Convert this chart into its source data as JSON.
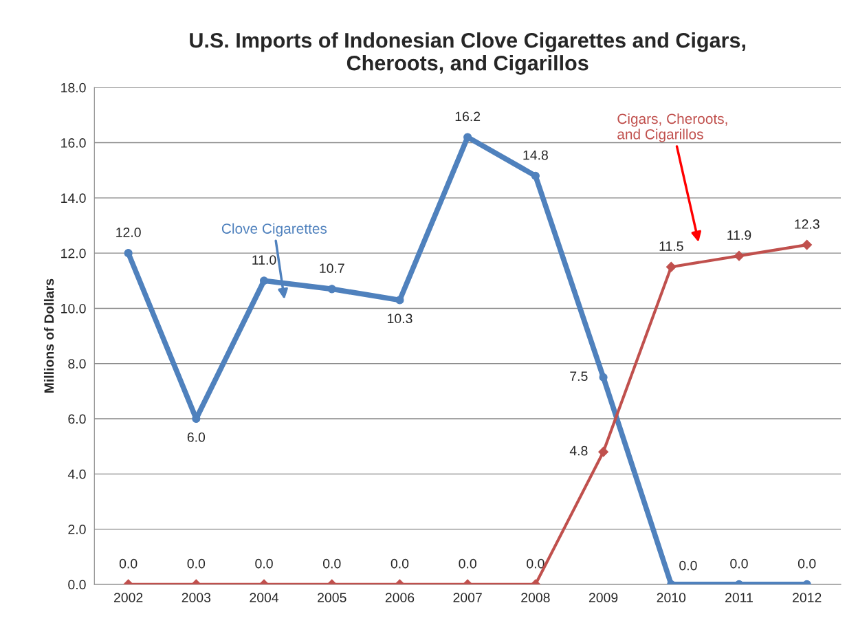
{
  "chart_data": {
    "type": "line",
    "title": "U.S. Imports of Indonesian Clove Cigarettes and Cigars,\nCheroots, and Cigarillos",
    "ylabel": "Millions of Dollars",
    "categories": [
      "2002",
      "2003",
      "2004",
      "2005",
      "2006",
      "2007",
      "2008",
      "2009",
      "2010",
      "2011",
      "2012"
    ],
    "series": [
      {
        "name": "Clove Cigarettes",
        "color": "#4f81bd",
        "marker": "circle",
        "values": [
          12.0,
          6.0,
          11.0,
          10.7,
          10.3,
          16.2,
          14.8,
          7.5,
          0.0,
          0.0,
          0.0
        ],
        "value_labels": [
          "12.0",
          "6.0",
          "11.0",
          "10.7",
          "10.3",
          "16.2",
          "14.8",
          "7.5",
          "0.0",
          "0.0",
          "0.0"
        ]
      },
      {
        "name": "Cigars, Cheroots,\nand Cigarillos",
        "color": "#c0504d",
        "marker": "diamond",
        "values": [
          0.0,
          0.0,
          0.0,
          0.0,
          0.0,
          0.0,
          0.0,
          4.8,
          11.5,
          11.9,
          12.3
        ],
        "value_labels": [
          "0.0",
          "0.0",
          "0.0",
          "0.0",
          "0.0",
          "0.0",
          "0.0",
          "4.8",
          "11.5",
          "11.9",
          "12.3"
        ]
      }
    ],
    "ylim": [
      0,
      18
    ],
    "yticks": [
      {
        "value": 0,
        "label": "0.0"
      },
      {
        "value": 2,
        "label": "2.0"
      },
      {
        "value": 4,
        "label": "4.0"
      },
      {
        "value": 6,
        "label": "6.0"
      },
      {
        "value": 8,
        "label": "8.0"
      },
      {
        "value": 10,
        "label": "10.0"
      },
      {
        "value": 12,
        "label": "12.0"
      },
      {
        "value": 14,
        "label": "14.0"
      },
      {
        "value": 16,
        "label": "16.0"
      },
      {
        "value": 18,
        "label": "18.0"
      }
    ],
    "grid": "y",
    "legend": false
  }
}
